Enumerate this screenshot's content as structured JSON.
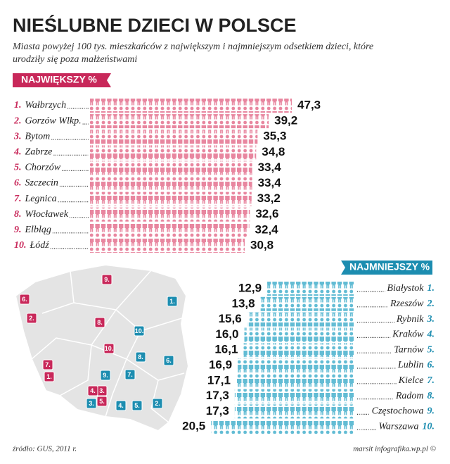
{
  "header": {
    "title": "NIEŚLUBNE DZIECI W POLSCE",
    "subtitle": [
      "Miasta powyżej 100 tys. mieszkańców z największym i najmniejszym odsetkiem dzieci, które",
      "urodziły się poza małżeństwami"
    ]
  },
  "chart_data": [
    {
      "type": "pictograph",
      "title": "NAJWIĘKSZY %",
      "color": "#e8869f",
      "label_color": "#c8285a",
      "direction": "right",
      "ranks": [
        "1.",
        "2.",
        "3.",
        "4.",
        "5.",
        "6.",
        "7.",
        "8.",
        "9.",
        "10."
      ],
      "categories": [
        "Wałbrzych",
        "Gorzów Wlkp.",
        "Bytom",
        "Zabrze",
        "Chorzów",
        "Szczecin",
        "Legnica",
        "Włocławek",
        "Elbląg",
        "Łódź"
      ],
      "values": [
        47.3,
        39.2,
        35.3,
        34.8,
        33.4,
        33.4,
        33.2,
        32.6,
        32.4,
        30.8
      ],
      "value_labels": [
        "47,3",
        "39,2",
        "35,3",
        "34,8",
        "33,4",
        "33,4",
        "33,2",
        "32,6",
        "32,4",
        "30,8"
      ]
    },
    {
      "type": "pictograph",
      "title": "NAJMNIEJSZY %",
      "color": "#62bcd4",
      "label_color": "#1c8db0",
      "direction": "left",
      "ranks": [
        "1.",
        "2.",
        "3.",
        "4.",
        "5.",
        "6.",
        "7.",
        "8.",
        "9.",
        "10."
      ],
      "categories": [
        "Białystok",
        "Rzeszów",
        "Rybnik",
        "Kraków",
        "Tarnów",
        "Lublin",
        "Kielce",
        "Radom",
        "Częstochowa",
        "Warszawa"
      ],
      "values": [
        12.9,
        13.8,
        15.6,
        16.0,
        16.1,
        16.9,
        17.1,
        17.3,
        17.3,
        20.5
      ],
      "value_labels": [
        "12,9",
        "13,8",
        "15,6",
        "16,0",
        "16,1",
        "16,9",
        "17,1",
        "17,3",
        "17,3",
        "20,5"
      ]
    }
  ],
  "map": {
    "largest": [
      "1.",
      "2.",
      "3.",
      "4.",
      "5.",
      "6.",
      "7.",
      "8.",
      "9.",
      "10."
    ],
    "smallest": [
      "1.",
      "2.",
      "3.",
      "4.",
      "5.",
      "6.",
      "7.",
      "8.",
      "9.",
      "10."
    ]
  },
  "footer": {
    "source": "źródło: GUS, 2011 r.",
    "credit": "marsit infografika.wp.pl ©"
  }
}
